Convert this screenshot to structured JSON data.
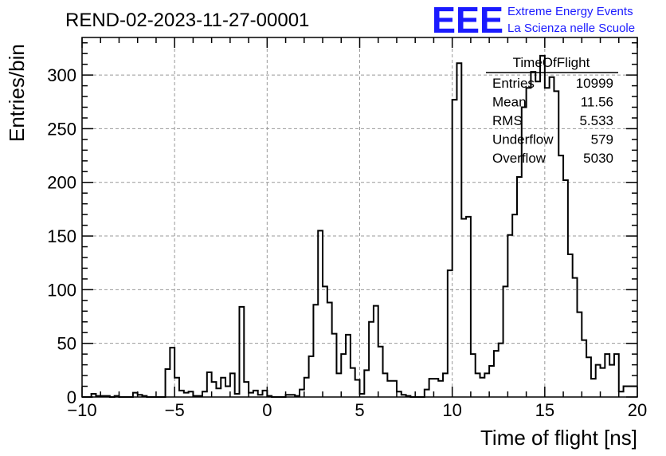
{
  "run_title": "REND-02-2023-11-27-00001",
  "logo": {
    "mark": "EEE",
    "line1": "Extreme Energy Events",
    "line2": "La Scienza nelle Scuole",
    "color": "#1a1aff"
  },
  "stats_box": {
    "title": "TimeOfFlight",
    "rows": [
      {
        "label": "Entries",
        "value": "10999"
      },
      {
        "label": "Mean",
        "value": "11.56"
      },
      {
        "label": "RMS",
        "value": "5.533"
      },
      {
        "label": "Underflow",
        "value": "579"
      },
      {
        "label": "Overflow",
        "value": "5030"
      }
    ]
  },
  "chart_data": {
    "type": "histogram",
    "title": "REND-02-2023-11-27-00001",
    "xlabel": "Time of flight [ns]",
    "ylabel": "Entries/bin",
    "xlim": [
      -10,
      20
    ],
    "ylim": [
      0,
      335
    ],
    "bin_width": 0.25,
    "x_ticks": [
      -10,
      -5,
      0,
      5,
      10,
      15,
      20
    ],
    "x_tick_labels": [
      "−10",
      "−5",
      "0",
      "5",
      "10",
      "15",
      "20"
    ],
    "y_ticks": [
      0,
      50,
      100,
      150,
      200,
      250,
      300
    ],
    "y_tick_labels": [
      "0",
      "50",
      "100",
      "150",
      "200",
      "250",
      "300"
    ],
    "grid": true,
    "line_color": "#000000",
    "bins": [
      {
        "x": -10.0,
        "y": 0
      },
      {
        "x": -9.75,
        "y": 0
      },
      {
        "x": -9.5,
        "y": 3
      },
      {
        "x": -9.25,
        "y": 1
      },
      {
        "x": -9.0,
        "y": 1
      },
      {
        "x": -8.75,
        "y": 1
      },
      {
        "x": -8.5,
        "y": 0
      },
      {
        "x": -8.25,
        "y": 1
      },
      {
        "x": -8.0,
        "y": 0
      },
      {
        "x": -7.75,
        "y": 0
      },
      {
        "x": -7.5,
        "y": 0
      },
      {
        "x": -7.25,
        "y": 4
      },
      {
        "x": -7.0,
        "y": 2
      },
      {
        "x": -6.75,
        "y": 1
      },
      {
        "x": -6.5,
        "y": 0
      },
      {
        "x": -6.25,
        "y": 0
      },
      {
        "x": -6.0,
        "y": 0
      },
      {
        "x": -5.75,
        "y": 0
      },
      {
        "x": -5.5,
        "y": 26
      },
      {
        "x": -5.25,
        "y": 46
      },
      {
        "x": -5.0,
        "y": 18
      },
      {
        "x": -4.75,
        "y": 6
      },
      {
        "x": -4.5,
        "y": 4
      },
      {
        "x": -4.25,
        "y": 5
      },
      {
        "x": -4.0,
        "y": 1
      },
      {
        "x": -3.75,
        "y": 1
      },
      {
        "x": -3.5,
        "y": 5
      },
      {
        "x": -3.25,
        "y": 23
      },
      {
        "x": -3.0,
        "y": 14
      },
      {
        "x": -2.75,
        "y": 8
      },
      {
        "x": -2.5,
        "y": 18
      },
      {
        "x": -2.25,
        "y": 10
      },
      {
        "x": -2.0,
        "y": 22
      },
      {
        "x": -1.75,
        "y": 3
      },
      {
        "x": -1.5,
        "y": 84
      },
      {
        "x": -1.25,
        "y": 14
      },
      {
        "x": -1.0,
        "y": 4
      },
      {
        "x": -0.75,
        "y": 6
      },
      {
        "x": -0.5,
        "y": 2
      },
      {
        "x": -0.25,
        "y": 6
      },
      {
        "x": 0.0,
        "y": 1
      },
      {
        "x": 0.25,
        "y": 0
      },
      {
        "x": 0.5,
        "y": 0
      },
      {
        "x": 0.75,
        "y": 0
      },
      {
        "x": 1.0,
        "y": 2
      },
      {
        "x": 1.25,
        "y": 2
      },
      {
        "x": 1.5,
        "y": 1
      },
      {
        "x": 1.75,
        "y": 7
      },
      {
        "x": 2.0,
        "y": 18
      },
      {
        "x": 2.25,
        "y": 38
      },
      {
        "x": 2.5,
        "y": 86
      },
      {
        "x": 2.75,
        "y": 155
      },
      {
        "x": 3.0,
        "y": 103
      },
      {
        "x": 3.25,
        "y": 88
      },
      {
        "x": 3.5,
        "y": 59
      },
      {
        "x": 3.75,
        "y": 22
      },
      {
        "x": 4.0,
        "y": 40
      },
      {
        "x": 4.25,
        "y": 58
      },
      {
        "x": 4.5,
        "y": 27
      },
      {
        "x": 4.75,
        "y": 16
      },
      {
        "x": 5.0,
        "y": 3
      },
      {
        "x": 5.25,
        "y": 25
      },
      {
        "x": 5.5,
        "y": 70
      },
      {
        "x": 5.75,
        "y": 85
      },
      {
        "x": 6.0,
        "y": 47
      },
      {
        "x": 6.25,
        "y": 22
      },
      {
        "x": 6.5,
        "y": 15
      },
      {
        "x": 6.75,
        "y": 15
      },
      {
        "x": 7.0,
        "y": 5
      },
      {
        "x": 7.25,
        "y": 2
      },
      {
        "x": 7.5,
        "y": 1
      },
      {
        "x": 7.75,
        "y": 0
      },
      {
        "x": 8.0,
        "y": 0
      },
      {
        "x": 8.25,
        "y": 0
      },
      {
        "x": 8.5,
        "y": 7
      },
      {
        "x": 8.75,
        "y": 17
      },
      {
        "x": 9.0,
        "y": 17
      },
      {
        "x": 9.25,
        "y": 15
      },
      {
        "x": 9.5,
        "y": 22
      },
      {
        "x": 9.75,
        "y": 118
      },
      {
        "x": 10.0,
        "y": 277
      },
      {
        "x": 10.25,
        "y": 311
      },
      {
        "x": 10.5,
        "y": 166
      },
      {
        "x": 10.75,
        "y": 168
      },
      {
        "x": 11.0,
        "y": 40
      },
      {
        "x": 11.25,
        "y": 22
      },
      {
        "x": 11.5,
        "y": 18
      },
      {
        "x": 11.75,
        "y": 22
      },
      {
        "x": 12.0,
        "y": 29
      },
      {
        "x": 12.25,
        "y": 43
      },
      {
        "x": 12.5,
        "y": 50
      },
      {
        "x": 12.75,
        "y": 103
      },
      {
        "x": 13.0,
        "y": 151
      },
      {
        "x": 13.25,
        "y": 170
      },
      {
        "x": 13.5,
        "y": 205
      },
      {
        "x": 13.75,
        "y": 270
      },
      {
        "x": 14.0,
        "y": 288
      },
      {
        "x": 14.25,
        "y": 303
      },
      {
        "x": 14.5,
        "y": 294
      },
      {
        "x": 14.75,
        "y": 318
      },
      {
        "x": 15.0,
        "y": 288
      },
      {
        "x": 15.25,
        "y": 298
      },
      {
        "x": 15.5,
        "y": 285
      },
      {
        "x": 15.75,
        "y": 225
      },
      {
        "x": 16.0,
        "y": 202
      },
      {
        "x": 16.25,
        "y": 133
      },
      {
        "x": 16.5,
        "y": 111
      },
      {
        "x": 16.75,
        "y": 79
      },
      {
        "x": 17.0,
        "y": 53
      },
      {
        "x": 17.25,
        "y": 37
      },
      {
        "x": 17.5,
        "y": 17
      },
      {
        "x": 17.75,
        "y": 30
      },
      {
        "x": 18.0,
        "y": 27
      },
      {
        "x": 18.25,
        "y": 40
      },
      {
        "x": 18.5,
        "y": 30
      },
      {
        "x": 18.75,
        "y": 40
      },
      {
        "x": 19.0,
        "y": 5
      },
      {
        "x": 19.25,
        "y": 10
      },
      {
        "x": 19.5,
        "y": 10
      },
      {
        "x": 19.75,
        "y": 10
      }
    ]
  }
}
